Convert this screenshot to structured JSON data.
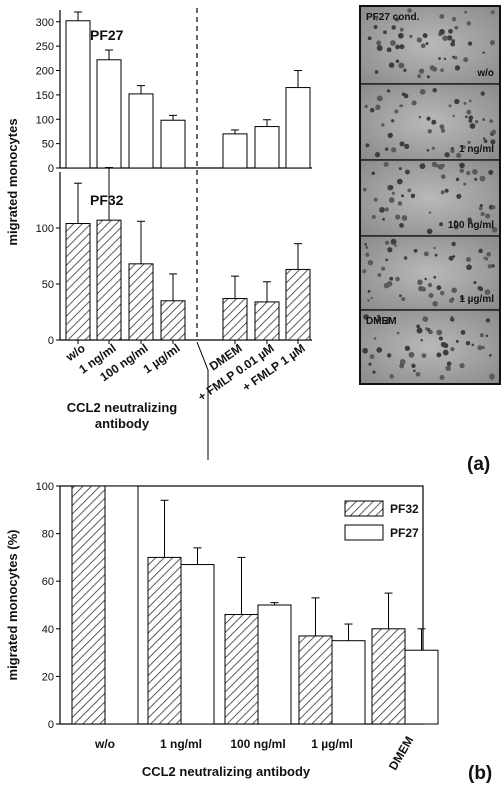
{
  "panel_labels": {
    "a": "(a)",
    "b": "(b)"
  },
  "panel_a": {
    "ylabel": "migrated monocytes",
    "xlabel_line1": "CCL2 neutralizing",
    "xlabel_line2": "antibody",
    "categories": [
      "w/o",
      "1 ng/ml",
      "100 ng/ml",
      "1 µg/ml",
      "DMEM",
      "+ FMLP 0.01 µM",
      "+ FMLP 1 µM"
    ],
    "bar_color": "#ffffff",
    "hatch_color": "#333333"
  },
  "chart_data": [
    {
      "type": "bar",
      "title": "PF27",
      "categories": [
        "w/o",
        "1 ng/ml",
        "100 ng/ml",
        "1 µg/ml",
        "DMEM",
        "+ FMLP 0.01 µM",
        "+ FMLP 1 µM"
      ],
      "values": [
        302,
        222,
        152,
        98,
        70,
        85,
        165
      ],
      "errors": [
        18,
        20,
        17,
        10,
        8,
        14,
        35
      ],
      "ylim": [
        0,
        320
      ],
      "yticks": [
        0,
        50,
        100,
        150,
        200,
        250,
        300
      ],
      "ylabel": "migrated monocytes",
      "fill": "white"
    },
    {
      "type": "bar",
      "title": "PF32",
      "categories": [
        "w/o",
        "1 ng/ml",
        "100 ng/ml",
        "1 µg/ml",
        "DMEM",
        "+ FMLP 0.01 µM",
        "+ FMLP 1 µM"
      ],
      "values": [
        104,
        107,
        68,
        35,
        37,
        34,
        63
      ],
      "errors": [
        36,
        47,
        38,
        24,
        20,
        18,
        23
      ],
      "ylim": [
        0,
        150
      ],
      "yticks": [
        0,
        50,
        100
      ],
      "ylabel": "migrated monocytes",
      "fill": "hatched"
    },
    {
      "type": "bar",
      "categories": [
        "w/o",
        "1 ng/ml",
        "100 ng/ml",
        "1 µg/ml",
        "DMEM"
      ],
      "series": [
        {
          "name": "PF32",
          "values": [
            100,
            70,
            46,
            37,
            40
          ],
          "errors": [
            0,
            24,
            24,
            16,
            15
          ],
          "fill": "hatched"
        },
        {
          "name": "PF27",
          "values": [
            100,
            67,
            50,
            35,
            31
          ],
          "errors": [
            0,
            7,
            1,
            7,
            9
          ],
          "fill": "white"
        }
      ],
      "ylim": [
        0,
        100
      ],
      "yticks": [
        0,
        20,
        40,
        60,
        80,
        100
      ],
      "ylabel": "migrated monocytes (%)",
      "xlabel": "CCL2 neutralizing antibody",
      "legend": "top-right"
    }
  ],
  "micrographs": [
    {
      "label1": "PF27 cond.",
      "label2": "w/o"
    },
    {
      "label1": "",
      "label2": "1 ng/ml"
    },
    {
      "label1": "",
      "label2": "100 ng/ml"
    },
    {
      "label1": "",
      "label2": "1 µg/ml"
    },
    {
      "label1": "DMEM",
      "label2": ""
    }
  ]
}
